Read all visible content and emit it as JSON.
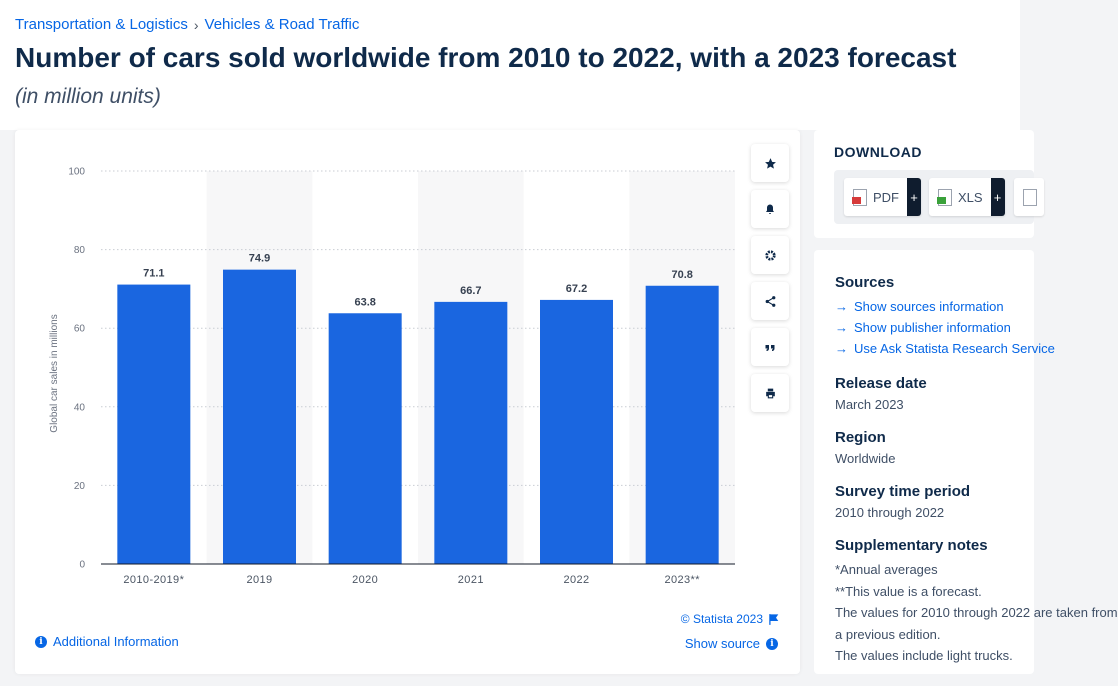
{
  "breadcrumb": {
    "category": "Transportation & Logistics",
    "separator": "›",
    "subcategory": "Vehicles & Road Traffic"
  },
  "title": "Number of cars sold worldwide from 2010 to 2022, with a 2023 forecast",
  "subtitle": "(in million units)",
  "chart_data": {
    "type": "bar",
    "categories": [
      "2010-2019*",
      "2019",
      "2020",
      "2021",
      "2022",
      "2023**"
    ],
    "values": [
      71.1,
      74.9,
      63.8,
      66.7,
      67.2,
      70.8
    ],
    "value_labels": [
      "71.1",
      "74.9",
      "63.8",
      "66.7",
      "67.2",
      "70.8"
    ],
    "ylabel": "Global car sales in millions",
    "ylim": [
      0,
      100
    ],
    "yticks": [
      0,
      20,
      40,
      60,
      80,
      100
    ],
    "ytick_labels": [
      "0",
      "20",
      "40",
      "60",
      "80",
      "100"
    ],
    "bar_color": "#1a66e0",
    "grid": true
  },
  "tools": [
    "star-icon",
    "bell-icon",
    "gear-icon",
    "share-icon",
    "quote-icon",
    "print-icon"
  ],
  "credit": "© Statista 2023",
  "show_source": "Show source",
  "additional_info": "Additional Information",
  "download": {
    "title": "DOWNLOAD",
    "pdf": "PDF",
    "xls": "XLS",
    "plus": "+"
  },
  "sources": {
    "heading": "Sources",
    "links": [
      "Show sources information",
      "Show publisher information",
      "Use Ask Statista Research Service"
    ]
  },
  "release_date": {
    "heading": "Release date",
    "value": "March 2023"
  },
  "region": {
    "heading": "Region",
    "value": "Worldwide"
  },
  "survey_period": {
    "heading": "Survey time period",
    "value": "2010 through 2022"
  },
  "supplementary": {
    "heading": "Supplementary notes",
    "lines": [
      "*Annual averages",
      "**This value is a forecast.",
      "The values for 2010 through 2022 are taken from",
      "a previous edition.",
      "The values include light trucks."
    ]
  },
  "colors": {
    "accent": "#0666e5",
    "title": "#0f2a4a"
  }
}
